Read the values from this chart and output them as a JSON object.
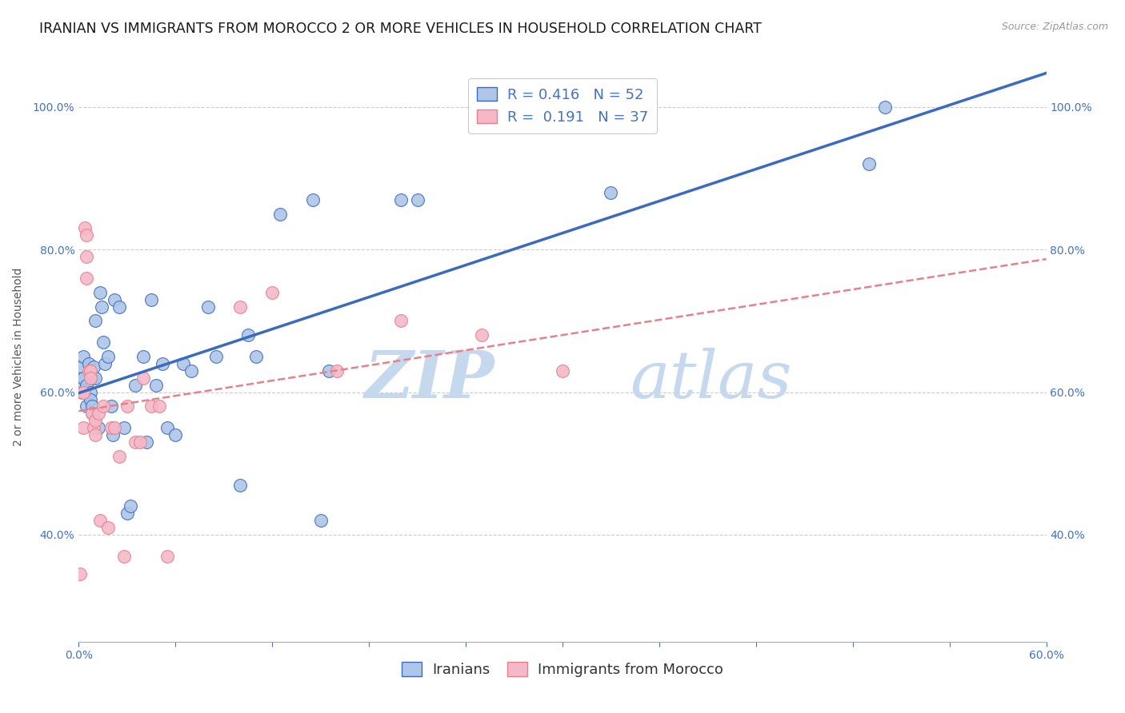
{
  "title": "IRANIAN VS IMMIGRANTS FROM MOROCCO 2 OR MORE VEHICLES IN HOUSEHOLD CORRELATION CHART",
  "source": "Source: ZipAtlas.com",
  "ylabel": "2 or more Vehicles in Household",
  "x_min": 0.0,
  "x_max": 0.6,
  "y_min": 0.25,
  "y_max": 1.05,
  "x_ticks": [
    0.0,
    0.06,
    0.12,
    0.18,
    0.24,
    0.3,
    0.36,
    0.42,
    0.48,
    0.54,
    0.6
  ],
  "x_tick_labels_show": [
    "0.0%",
    "60.0%"
  ],
  "y_ticks": [
    0.4,
    0.6,
    0.8,
    1.0
  ],
  "y_tick_labels": [
    "40.0%",
    "60.0%",
    "80.0%",
    "100.0%"
  ],
  "legend_labels": [
    "Iranians",
    "Immigrants from Morocco"
  ],
  "iranians_color": "#aec6e8",
  "morocco_color": "#f4b8c8",
  "iranians_line_color": "#3a6bbf",
  "morocco_line_color": "#e8808a",
  "r_iranians": 0.416,
  "n_iranians": 52,
  "r_morocco": 0.191,
  "n_morocco": 37,
  "watermark_zip": "ZIP",
  "watermark_atlas": "atlas",
  "iranians_x": [
    0.002,
    0.002,
    0.003,
    0.003,
    0.004,
    0.005,
    0.005,
    0.006,
    0.007,
    0.007,
    0.008,
    0.008,
    0.009,
    0.01,
    0.01,
    0.012,
    0.013,
    0.014,
    0.015,
    0.016,
    0.018,
    0.02,
    0.021,
    0.022,
    0.025,
    0.028,
    0.03,
    0.032,
    0.035,
    0.04,
    0.042,
    0.045,
    0.048,
    0.052,
    0.055,
    0.06,
    0.065,
    0.07,
    0.08,
    0.085,
    0.1,
    0.105,
    0.11,
    0.125,
    0.145,
    0.15,
    0.155,
    0.2,
    0.21,
    0.33,
    0.49,
    0.5
  ],
  "iranians_y": [
    0.615,
    0.635,
    0.65,
    0.62,
    0.6,
    0.61,
    0.58,
    0.64,
    0.6,
    0.59,
    0.62,
    0.58,
    0.635,
    0.7,
    0.62,
    0.55,
    0.74,
    0.72,
    0.67,
    0.64,
    0.65,
    0.58,
    0.54,
    0.73,
    0.72,
    0.55,
    0.43,
    0.44,
    0.61,
    0.65,
    0.53,
    0.73,
    0.61,
    0.64,
    0.55,
    0.54,
    0.64,
    0.63,
    0.72,
    0.65,
    0.47,
    0.68,
    0.65,
    0.85,
    0.87,
    0.42,
    0.63,
    0.87,
    0.87,
    0.88,
    0.92,
    1.0
  ],
  "morocco_x": [
    0.001,
    0.002,
    0.003,
    0.003,
    0.004,
    0.005,
    0.005,
    0.005,
    0.006,
    0.007,
    0.007,
    0.008,
    0.008,
    0.009,
    0.01,
    0.01,
    0.012,
    0.013,
    0.015,
    0.018,
    0.02,
    0.022,
    0.025,
    0.028,
    0.03,
    0.035,
    0.038,
    0.04,
    0.045,
    0.05,
    0.055,
    0.1,
    0.12,
    0.16,
    0.2,
    0.25,
    0.3
  ],
  "morocco_y": [
    0.345,
    0.6,
    0.6,
    0.55,
    0.83,
    0.82,
    0.76,
    0.79,
    0.63,
    0.63,
    0.62,
    0.57,
    0.57,
    0.55,
    0.54,
    0.56,
    0.57,
    0.42,
    0.58,
    0.41,
    0.55,
    0.55,
    0.51,
    0.37,
    0.58,
    0.53,
    0.53,
    0.62,
    0.58,
    0.58,
    0.37,
    0.72,
    0.74,
    0.63,
    0.7,
    0.68,
    0.63
  ],
  "background_color": "#ffffff",
  "grid_color": "#cccccc",
  "title_fontsize": 12.5,
  "axis_label_fontsize": 10,
  "tick_fontsize": 10,
  "legend_fontsize": 13
}
